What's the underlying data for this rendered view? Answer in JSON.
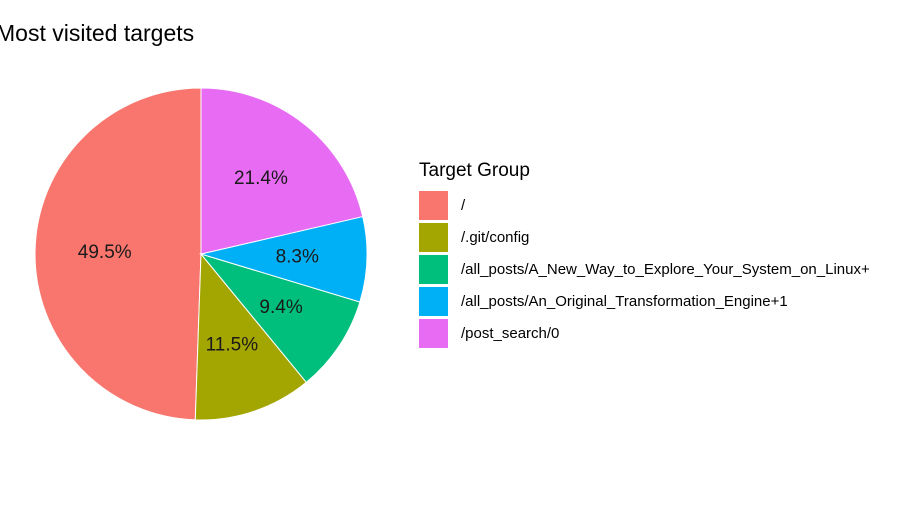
{
  "chart_data": {
    "type": "pie",
    "title": "Most visited targets",
    "legend_title": "Target Group",
    "legend_position": "right",
    "slices": [
      {
        "label": "/",
        "value": 49.5,
        "value_label": "49.5%",
        "color": "#F8766D"
      },
      {
        "label": "/.git/config",
        "value": 11.5,
        "value_label": "11.5%",
        "color": "#A3A500"
      },
      {
        "label": "/all_posts/A_New_Way_to_Explore_Your_System_on_Linux+",
        "value": 9.4,
        "value_label": "9.4%",
        "color": "#00BF7D"
      },
      {
        "label": "/all_posts/An_Original_Transformation_Engine+1",
        "value": 8.3,
        "value_label": "8.3%",
        "color": "#00B0F6"
      },
      {
        "label": "/post_search/0",
        "value": 21.4,
        "value_label": "21.4%",
        "color": "#E76BF3"
      }
    ],
    "slice_order": "counterclockwise-from-top"
  }
}
